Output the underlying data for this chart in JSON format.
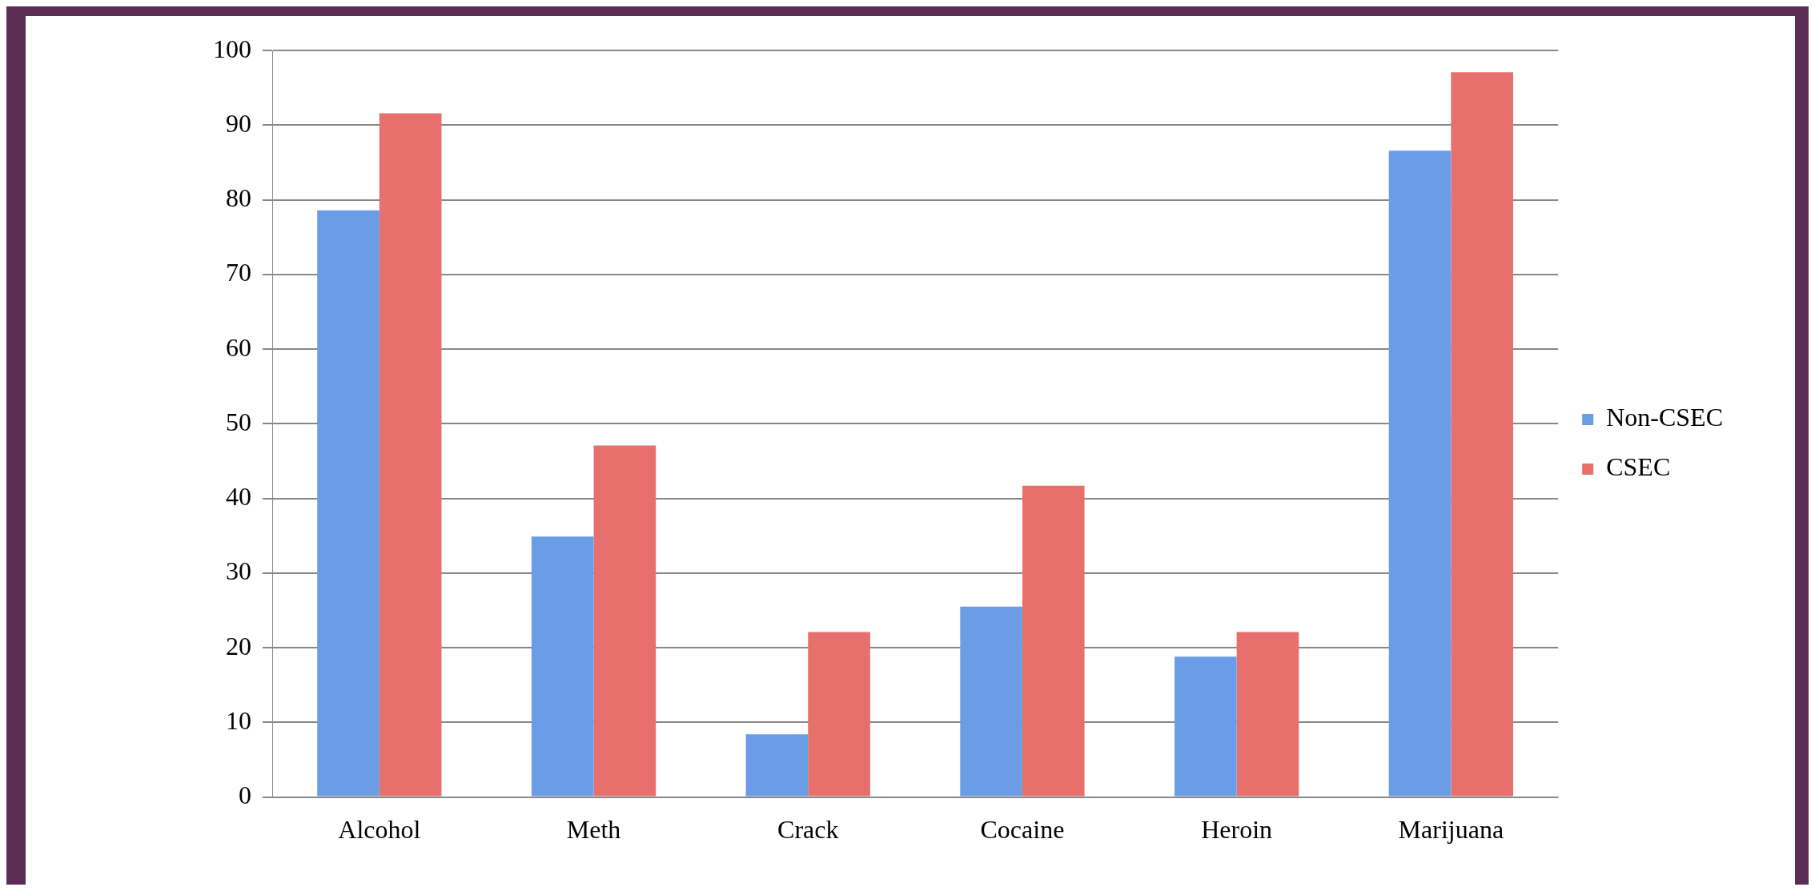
{
  "chart_data": {
    "type": "bar",
    "categories": [
      "Alcohol",
      "Meth",
      "Crack",
      "Cocaine",
      "Heroin",
      "Marijuana"
    ],
    "series": [
      {
        "name": "Non-CSEC",
        "color": "#6a9de6",
        "values": [
          78.6,
          34.9,
          8.4,
          25.5,
          18.8,
          86.6
        ]
      },
      {
        "name": "CSEC",
        "color": "#e8706c",
        "values": [
          91.6,
          47.1,
          22.1,
          41.7,
          22.1,
          97.1
        ]
      }
    ],
    "ylim": [
      0,
      100
    ],
    "yticks": [
      0,
      10,
      20,
      30,
      40,
      50,
      60,
      70,
      80,
      90,
      100
    ],
    "grid": "y",
    "legend": "right"
  }
}
